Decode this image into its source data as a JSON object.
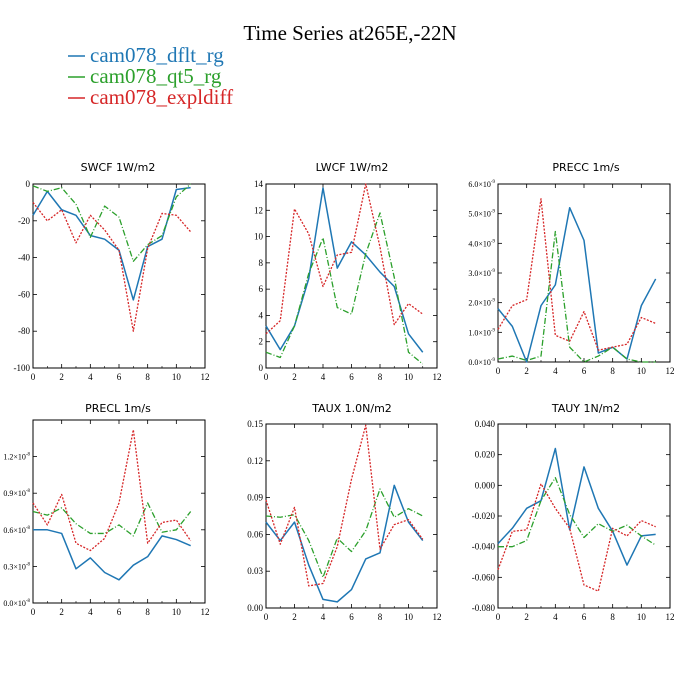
{
  "figure": {
    "title": "Time Series at265E,-22N",
    "legend": [
      {
        "name": "cam078_dflt_rg",
        "color": "#1f77b4"
      },
      {
        "name": "cam078_qt5_rg",
        "color": "#2ca02c"
      },
      {
        "name": "cam078_expldiff",
        "color": "#d62728"
      }
    ]
  },
  "chart_data": [
    {
      "type": "line",
      "title": "SWCF   1W/m2",
      "x": [
        0,
        1,
        2,
        3,
        4,
        5,
        6,
        7,
        8,
        9,
        10,
        11
      ],
      "ylim": [
        -100,
        0
      ],
      "xticks": [
        0,
        2,
        4,
        6,
        8,
        10,
        12
      ],
      "yticks": [
        {
          "v": 0,
          "label": "0"
        },
        {
          "v": -20,
          "label": "-20"
        },
        {
          "v": -40,
          "label": "-40"
        },
        {
          "v": -60,
          "label": "-60"
        },
        {
          "v": -80,
          "label": "-80"
        },
        {
          "v": -100,
          "label": "-100"
        }
      ],
      "series": [
        {
          "name": "cam078_dflt_rg",
          "values": [
            -17,
            -4,
            -14,
            -17,
            -28,
            -30,
            -36,
            -63,
            -34,
            -30,
            -3,
            -2
          ]
        },
        {
          "name": "cam078_qt5_rg",
          "values": [
            -1,
            -4,
            -2,
            -11,
            -29,
            -12,
            -18,
            -42,
            -33,
            -28,
            -7,
            0
          ]
        },
        {
          "name": "cam078_expldiff",
          "values": [
            -10,
            -20,
            -14,
            -32,
            -17,
            -25,
            -36,
            -80,
            -35,
            -16,
            -17,
            -26
          ]
        }
      ]
    },
    {
      "type": "line",
      "title": "LWCF   1W/m2",
      "x": [
        0,
        1,
        2,
        3,
        4,
        5,
        6,
        7,
        8,
        9,
        10,
        11
      ],
      "ylim": [
        0,
        14
      ],
      "xticks": [
        0,
        2,
        4,
        6,
        8,
        10,
        12
      ],
      "yticks": [
        {
          "v": 0,
          "label": "0"
        },
        {
          "v": 2,
          "label": "2"
        },
        {
          "v": 4,
          "label": "4"
        },
        {
          "v": 6,
          "label": "6"
        },
        {
          "v": 8,
          "label": "8"
        },
        {
          "v": 10,
          "label": "10"
        },
        {
          "v": 12,
          "label": "12"
        },
        {
          "v": 14,
          "label": "14"
        }
      ],
      "series": [
        {
          "name": "cam078_dflt_rg",
          "values": [
            3.2,
            1.4,
            3.2,
            6.8,
            13.7,
            7.6,
            9.6,
            8.6,
            7.3,
            6.2,
            2.6,
            1.2
          ]
        },
        {
          "name": "cam078_qt5_rg",
          "values": [
            1.2,
            0.8,
            3.2,
            7.2,
            9.9,
            4.6,
            4.1,
            8.7,
            11.8,
            6.9,
            1.2,
            0.3
          ]
        },
        {
          "name": "cam078_expldiff",
          "values": [
            2.6,
            3.6,
            12.1,
            10.2,
            6.2,
            8.6,
            8.8,
            14.0,
            9.2,
            3.3,
            4.9,
            4.1
          ]
        }
      ]
    },
    {
      "type": "line",
      "title": "PRECC   1m/s",
      "x": [
        0,
        1,
        2,
        3,
        4,
        5,
        6,
        7,
        8,
        9,
        10,
        11
      ],
      "ylim": [
        0,
        6e-09
      ],
      "xticks": [
        0,
        2,
        4,
        6,
        8,
        10,
        12
      ],
      "yticks": [
        {
          "v": 0,
          "label": "0.0×10",
          "exp": "-9"
        },
        {
          "v": 1e-09,
          "label": "1.0×10",
          "exp": "-9"
        },
        {
          "v": 2e-09,
          "label": "2.0×10",
          "exp": "-9"
        },
        {
          "v": 3e-09,
          "label": "3.0×10",
          "exp": "-9"
        },
        {
          "v": 4e-09,
          "label": "4.0×10",
          "exp": "-9"
        },
        {
          "v": 5e-09,
          "label": "5.0×10",
          "exp": "-9"
        },
        {
          "v": 6e-09,
          "label": "6.0×10",
          "exp": "-9"
        }
      ],
      "series": [
        {
          "name": "cam078_dflt_rg",
          "values": [
            1.8e-09,
            1.2e-09,
            0,
            1.9e-09,
            2.6e-09,
            5.2e-09,
            4.1e-09,
            3e-10,
            5e-10,
            1e-10,
            1.9e-09,
            2.8e-09
          ]
        },
        {
          "name": "cam078_qt5_rg",
          "values": [
            1e-10,
            2e-10,
            5e-11,
            2e-10,
            4.4e-09,
            5e-10,
            0,
            2e-10,
            5e-10,
            1e-10,
            0,
            0
          ]
        },
        {
          "name": "cam078_expldiff",
          "values": [
            1.1e-09,
            1.9e-09,
            2.1e-09,
            5.5e-09,
            9e-10,
            7e-10,
            1.7e-09,
            4e-10,
            5e-10,
            6e-10,
            1.5e-09,
            1.3e-09
          ]
        }
      ]
    },
    {
      "type": "line",
      "title": "PRECL   1m/s",
      "x": [
        0,
        1,
        2,
        3,
        4,
        5,
        6,
        7,
        8,
        9,
        10,
        11
      ],
      "ylim": [
        0,
        1.5e-08
      ],
      "xticks": [
        0,
        2,
        4,
        6,
        8,
        10,
        12
      ],
      "yticks": [
        {
          "v": 0,
          "label": "0.0×10",
          "exp": "-8"
        },
        {
          "v": 3e-09,
          "label": "0.3×10",
          "exp": "-8"
        },
        {
          "v": 6e-09,
          "label": "0.6×10",
          "exp": "-8"
        },
        {
          "v": 9e-09,
          "label": "0.9×10",
          "exp": "-8"
        },
        {
          "v": 1.2e-08,
          "label": "1.2×10",
          "exp": "-8"
        }
      ],
      "series": [
        {
          "name": "cam078_dflt_rg",
          "values": [
            6e-09,
            6e-09,
            5.7e-09,
            2.8e-09,
            3.7e-09,
            2.5e-09,
            1.9e-09,
            3.1e-09,
            3.8e-09,
            5.5e-09,
            5.2e-09,
            4.7e-09
          ]
        },
        {
          "name": "cam078_qt5_rg",
          "values": [
            7.5e-09,
            7.2e-09,
            7.8e-09,
            6.5e-09,
            5.7e-09,
            5.7e-09,
            6.4e-09,
            5.5e-09,
            8.2e-09,
            5.8e-09,
            6e-09,
            7.5e-09
          ]
        },
        {
          "name": "cam078_expldiff",
          "values": [
            8.2e-09,
            6.4e-09,
            8.9e-09,
            4.9e-09,
            4.3e-09,
            5.3e-09,
            8.2e-09,
            1.42e-08,
            4.9e-09,
            6.6e-09,
            6.8e-09,
            5.1e-09
          ]
        }
      ]
    },
    {
      "type": "line",
      "title": "TAUX   1.0N/m2",
      "x": [
        0,
        1,
        2,
        3,
        4,
        5,
        6,
        7,
        8,
        9,
        10,
        11
      ],
      "ylim": [
        0,
        0.15
      ],
      "xticks": [
        0,
        2,
        4,
        6,
        8,
        10,
        12
      ],
      "yticks": [
        {
          "v": 0,
          "label": "0.00"
        },
        {
          "v": 0.03,
          "label": "0.03"
        },
        {
          "v": 0.06,
          "label": "0.06"
        },
        {
          "v": 0.09,
          "label": "0.09"
        },
        {
          "v": 0.12,
          "label": "0.12"
        },
        {
          "v": 0.15,
          "label": "0.15"
        }
      ],
      "series": [
        {
          "name": "cam078_dflt_rg",
          "values": [
            0.07,
            0.055,
            0.07,
            0.035,
            0.007,
            0.005,
            0.015,
            0.04,
            0.045,
            0.1,
            0.07,
            0.055
          ]
        },
        {
          "name": "cam078_qt5_rg",
          "values": [
            0.075,
            0.074,
            0.076,
            0.055,
            0.025,
            0.057,
            0.046,
            0.063,
            0.097,
            0.074,
            0.081,
            0.075
          ]
        },
        {
          "name": "cam078_expldiff",
          "values": [
            0.088,
            0.052,
            0.082,
            0.018,
            0.02,
            0.05,
            0.105,
            0.149,
            0.048,
            0.068,
            0.072,
            0.056
          ]
        }
      ]
    },
    {
      "type": "line",
      "title": "TAUY   1N/m2",
      "x": [
        0,
        1,
        2,
        3,
        4,
        5,
        6,
        7,
        8,
        9,
        10,
        11
      ],
      "ylim": [
        -0.08,
        0.04
      ],
      "xticks": [
        0,
        2,
        4,
        6,
        8,
        10,
        12
      ],
      "yticks": [
        {
          "v": 0.04,
          "label": "0.040"
        },
        {
          "v": 0.02,
          "label": "0.020"
        },
        {
          "v": 0,
          "label": "0.000"
        },
        {
          "v": -0.02,
          "label": "-0.020"
        },
        {
          "v": -0.04,
          "label": "-0.040"
        },
        {
          "v": -0.06,
          "label": "-0.060"
        },
        {
          "v": -0.08,
          "label": "-0.080"
        }
      ],
      "series": [
        {
          "name": "cam078_dflt_rg",
          "values": [
            -0.038,
            -0.028,
            -0.015,
            -0.01,
            0.024,
            -0.029,
            0.012,
            -0.015,
            -0.03,
            -0.052,
            -0.033,
            -0.032
          ]
        },
        {
          "name": "cam078_qt5_rg",
          "values": [
            -0.04,
            -0.04,
            -0.036,
            -0.01,
            0.005,
            -0.019,
            -0.034,
            -0.025,
            -0.03,
            -0.026,
            -0.033,
            -0.039
          ]
        },
        {
          "name": "cam078_expldiff",
          "values": [
            -0.055,
            -0.03,
            -0.029,
            0.001,
            -0.015,
            -0.028,
            -0.065,
            -0.069,
            -0.028,
            -0.033,
            -0.023,
            -0.027
          ]
        }
      ]
    }
  ]
}
